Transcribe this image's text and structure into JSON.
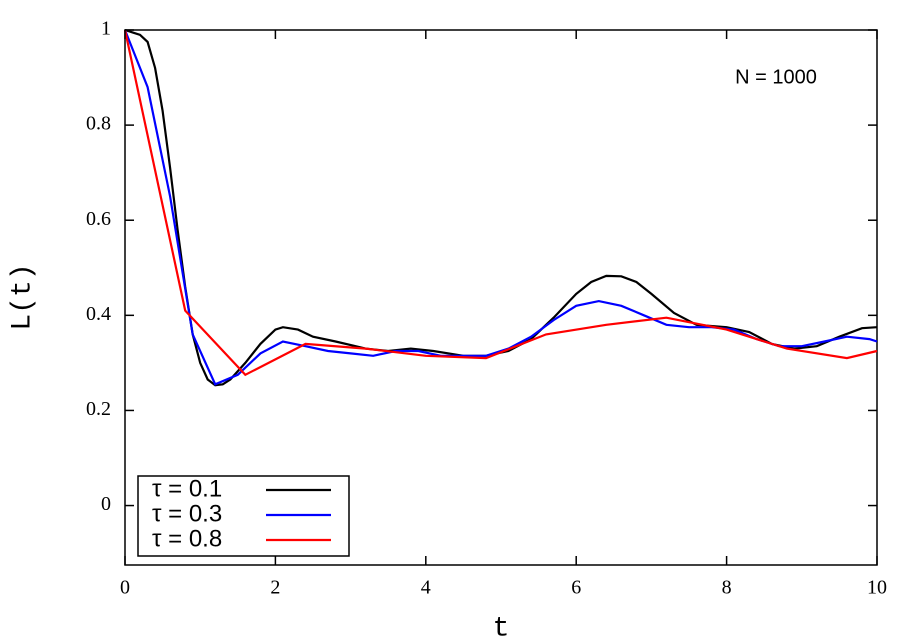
{
  "chart_data": {
    "type": "line",
    "xlabel": "t",
    "ylabel": "L(t)",
    "annotation": "N = 1000",
    "xlim": [
      0,
      10
    ],
    "ylim": [
      -0.125,
      1
    ],
    "xticks": [
      0,
      2,
      4,
      6,
      8,
      10
    ],
    "yticks": [
      0,
      0.2,
      0.4,
      0.6,
      0.8,
      1
    ],
    "legend": "lower left",
    "series": [
      {
        "name": "τ = 0.1",
        "color": "#000000",
        "x": [
          0,
          0.1,
          0.2,
          0.3,
          0.4,
          0.5,
          0.6,
          0.7,
          0.8,
          0.9,
          1.0,
          1.1,
          1.2,
          1.3,
          1.4,
          1.6,
          1.8,
          2.0,
          2.1,
          2.3,
          2.5,
          2.8,
          3.2,
          3.5,
          3.8,
          4.1,
          4.5,
          4.8,
          5.1,
          5.4,
          5.7,
          6.0,
          6.2,
          6.4,
          6.6,
          6.8,
          7.0,
          7.3,
          7.6,
          8.0,
          8.3,
          8.6,
          8.9,
          9.2,
          9.5,
          9.8,
          10
        ],
        "values": [
          1.0,
          0.995,
          0.99,
          0.975,
          0.92,
          0.83,
          0.71,
          0.58,
          0.46,
          0.36,
          0.3,
          0.265,
          0.253,
          0.255,
          0.265,
          0.3,
          0.34,
          0.37,
          0.375,
          0.37,
          0.355,
          0.345,
          0.33,
          0.325,
          0.33,
          0.325,
          0.315,
          0.315,
          0.325,
          0.35,
          0.395,
          0.445,
          0.47,
          0.483,
          0.482,
          0.47,
          0.445,
          0.405,
          0.38,
          0.375,
          0.365,
          0.34,
          0.33,
          0.335,
          0.355,
          0.373,
          0.375
        ]
      },
      {
        "name": "τ = 0.3",
        "color": "#0000ff",
        "x": [
          0,
          0.3,
          0.6,
          0.9,
          1.2,
          1.5,
          1.8,
          2.1,
          2.4,
          2.7,
          3.0,
          3.3,
          3.6,
          3.9,
          4.2,
          4.5,
          4.8,
          5.1,
          5.4,
          5.7,
          6.0,
          6.3,
          6.6,
          6.9,
          7.2,
          7.5,
          7.8,
          8.1,
          8.4,
          8.7,
          9.0,
          9.3,
          9.6,
          9.9,
          10
        ],
        "values": [
          1.0,
          0.88,
          0.65,
          0.36,
          0.255,
          0.275,
          0.32,
          0.345,
          0.335,
          0.325,
          0.32,
          0.315,
          0.325,
          0.325,
          0.315,
          0.315,
          0.315,
          0.33,
          0.355,
          0.39,
          0.42,
          0.43,
          0.42,
          0.4,
          0.38,
          0.375,
          0.375,
          0.37,
          0.35,
          0.335,
          0.335,
          0.345,
          0.355,
          0.35,
          0.345
        ]
      },
      {
        "name": "τ = 0.8",
        "color": "#ff0000",
        "x": [
          0,
          0.8,
          1.6,
          2.4,
          3.2,
          4.0,
          4.8,
          5.6,
          6.4,
          7.2,
          8.0,
          8.8,
          9.6,
          10
        ],
        "values": [
          1.0,
          0.41,
          0.275,
          0.34,
          0.33,
          0.315,
          0.31,
          0.36,
          0.38,
          0.395,
          0.37,
          0.33,
          0.31,
          0.325
        ]
      }
    ]
  }
}
